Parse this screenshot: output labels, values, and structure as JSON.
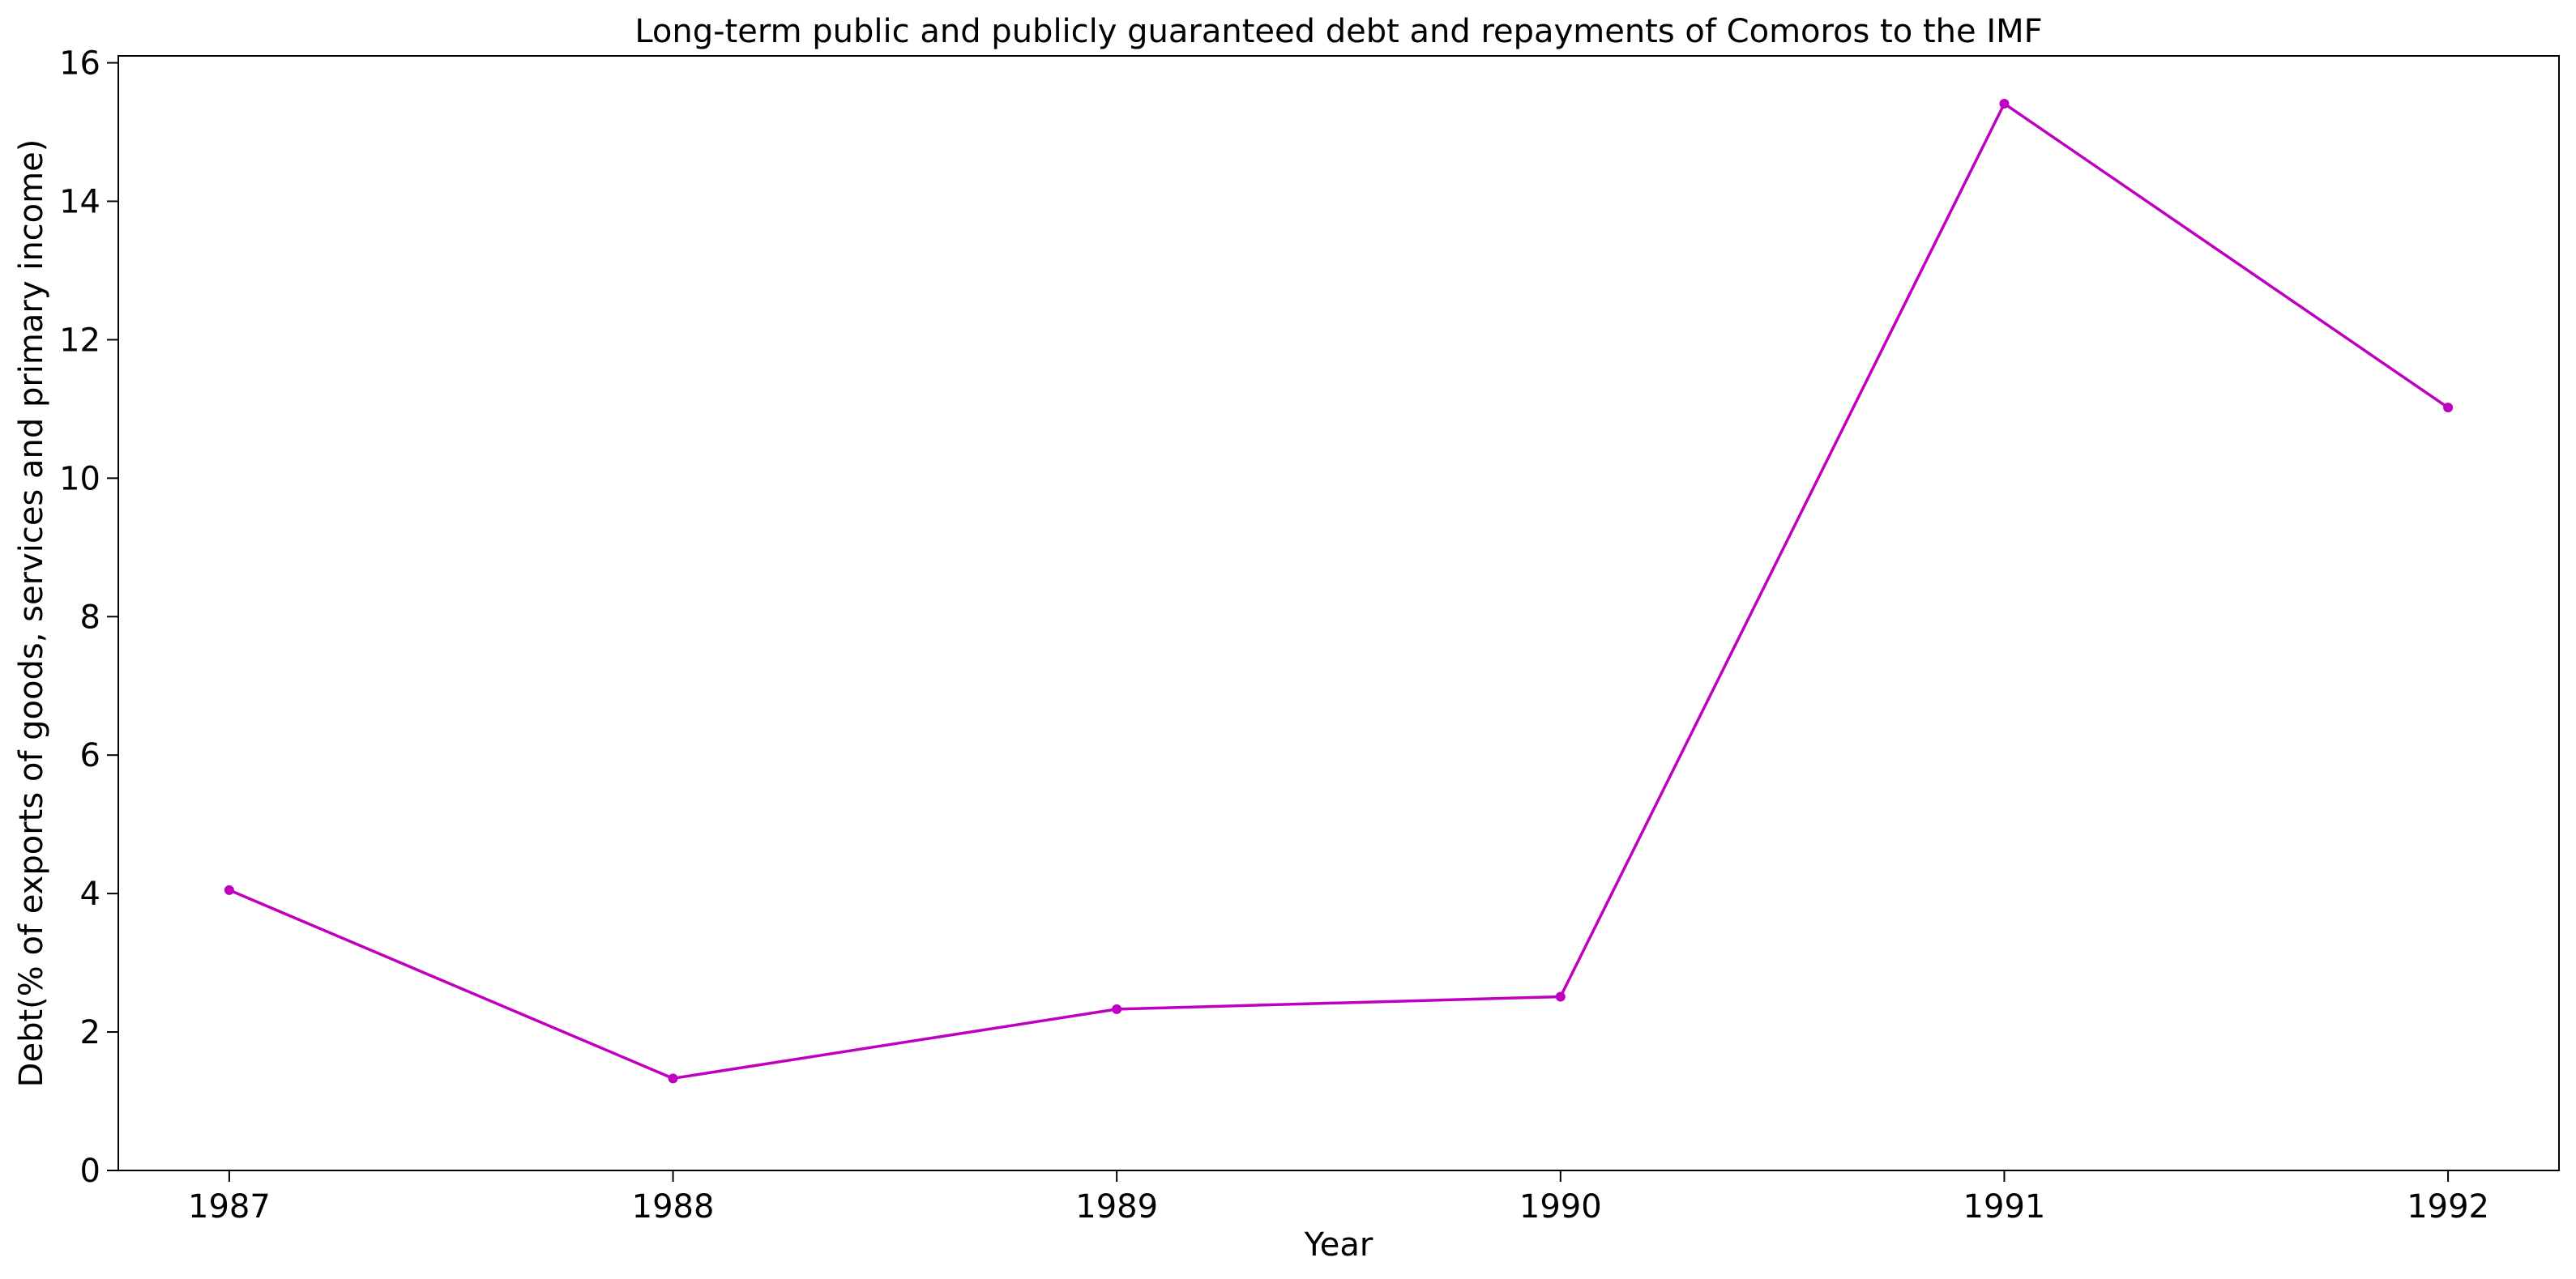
{
  "chart_data": {
    "type": "line",
    "title": "Long-term public and publicly guaranteed debt and repayments of Comoros to the IMF",
    "xlabel": "Year",
    "ylabel": "Debt(% of exports of goods, services and primary income)",
    "x": [
      "1987",
      "1988",
      "1989",
      "1990",
      "1991",
      "1992"
    ],
    "series": [
      {
        "values": [
          4.05,
          1.33,
          2.33,
          2.51,
          15.41,
          11.02
        ],
        "color": "#c000c0"
      }
    ],
    "xlim": [
      1986.75,
      1992.25
    ],
    "ylim": [
      0,
      16.1
    ],
    "yticks": [
      0,
      2,
      4,
      6,
      8,
      10,
      12,
      14,
      16
    ],
    "grid": false,
    "legend": "none"
  }
}
